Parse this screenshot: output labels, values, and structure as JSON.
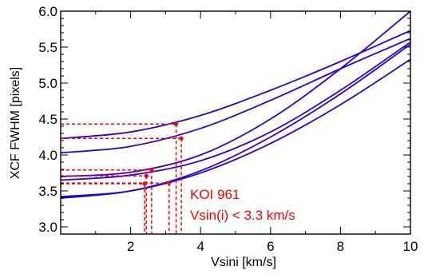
{
  "chart_data": {
    "type": "line",
    "title": "",
    "xlabel": "Vsini [km/s]",
    "ylabel": "XCF FWHM [pixels]",
    "xlim": [
      0,
      10
    ],
    "ylim": [
      2.9,
      6.0
    ],
    "xticks": [
      2,
      4,
      6,
      8,
      10
    ],
    "xtick_labels": [
      "2",
      "4",
      "6",
      "8",
      "10"
    ],
    "yticks": [
      3.0,
      3.5,
      4.0,
      4.5,
      5.0,
      5.5,
      6.0
    ],
    "ytick_labels": [
      "3.0",
      "3.5",
      "4.0",
      "4.5",
      "5.0",
      "5.5",
      "6.0"
    ],
    "grid": false,
    "line_color": "#2b00d6",
    "annotation_color": "#ff0000",
    "series": [
      {
        "x": [
          0,
          2,
          4,
          6,
          8,
          10
        ],
        "y": [
          4.23,
          4.32,
          4.55,
          4.9,
          5.3,
          5.73
        ]
      },
      {
        "x": [
          0,
          2,
          4,
          6,
          8,
          10
        ],
        "y": [
          4.03,
          4.12,
          4.37,
          4.76,
          5.2,
          5.62
        ]
      },
      {
        "x": [
          0,
          2,
          4,
          6,
          8,
          10
        ],
        "y": [
          3.7,
          3.76,
          4.0,
          4.5,
          5.2,
          6.0
        ]
      },
      {
        "x": [
          0,
          2,
          4,
          6,
          8,
          10
        ],
        "y": [
          3.65,
          3.72,
          3.92,
          4.32,
          4.9,
          5.57
        ]
      },
      {
        "x": [
          0,
          2,
          4,
          6,
          8,
          10
        ],
        "y": [
          3.4,
          3.5,
          3.78,
          4.25,
          4.85,
          5.54
        ]
      },
      {
        "x": [
          0,
          2,
          4,
          6,
          8,
          10
        ],
        "y": [
          3.42,
          3.5,
          3.75,
          4.16,
          4.7,
          5.33
        ]
      }
    ],
    "measurements": [
      {
        "x": 3.3,
        "y": 4.43
      },
      {
        "x": 3.45,
        "y": 4.23
      },
      {
        "x": 2.6,
        "y": 3.79
      },
      {
        "x": 2.45,
        "y": 3.71
      },
      {
        "x": 3.1,
        "y": 3.61
      },
      {
        "x": 2.4,
        "y": 3.6
      }
    ],
    "annotations": [
      "KOI 961",
      "Vsin(i) < 3.3 km/s"
    ]
  }
}
